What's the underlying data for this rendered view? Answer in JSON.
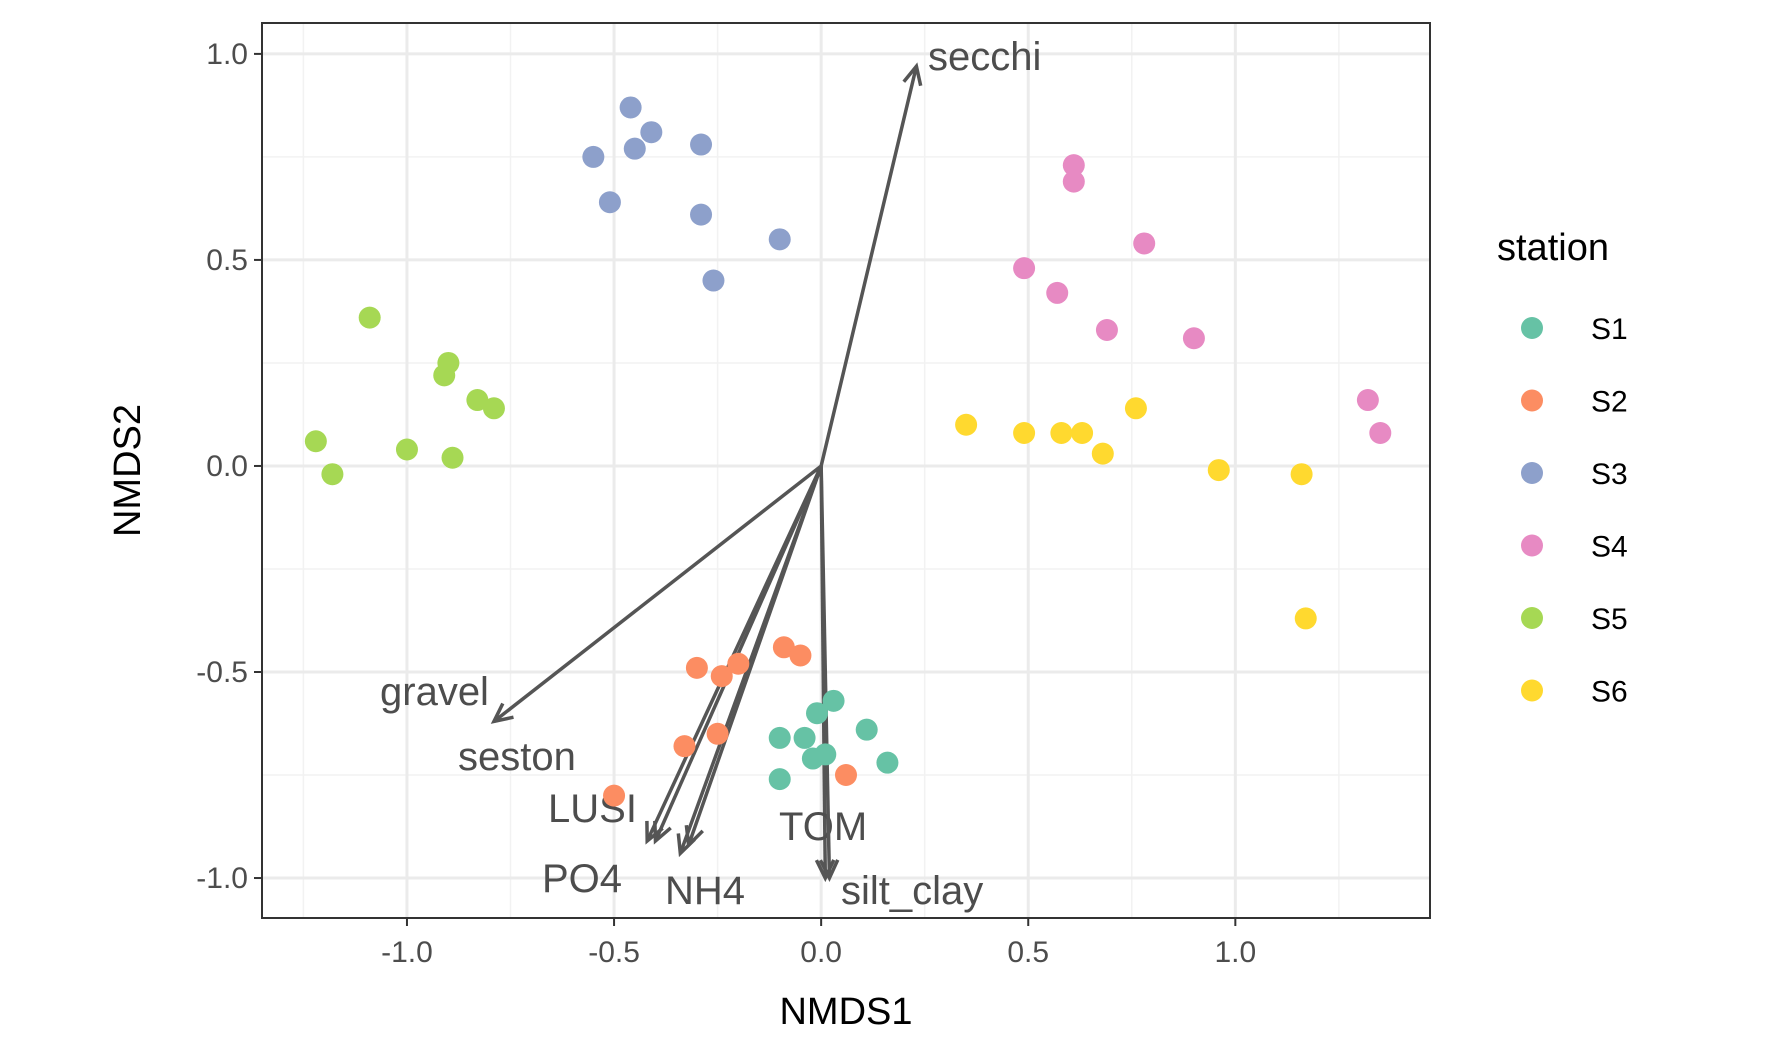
{
  "chart_data": {
    "type": "scatter",
    "xlabel": "NMDS1",
    "ylabel": "NMDS2",
    "xlim": [
      -1.35,
      1.47
    ],
    "ylim": [
      -1.097,
      1.075
    ],
    "xticks": [
      -1.0,
      -0.5,
      0.0,
      0.5,
      1.0
    ],
    "xtick_labels": [
      "-1.0",
      "-0.5",
      "0.0",
      "0.5",
      "1.0"
    ],
    "yticks": [
      -1.0,
      -0.5,
      0.0,
      0.5,
      1.0
    ],
    "ytick_labels": [
      "-1.0",
      "-0.5",
      "0.0",
      "0.5",
      "1.0"
    ],
    "grid": true,
    "legend": {
      "title": "station",
      "position": "right"
    },
    "series": [
      {
        "name": "S1",
        "color": "#66C2A5",
        "points": [
          [
            0.03,
            -0.57
          ],
          [
            -0.01,
            -0.6
          ],
          [
            0.11,
            -0.64
          ],
          [
            -0.04,
            -0.66
          ],
          [
            -0.1,
            -0.66
          ],
          [
            0.01,
            -0.7
          ],
          [
            -0.02,
            -0.71
          ],
          [
            0.16,
            -0.72
          ],
          [
            -0.1,
            -0.76
          ]
        ]
      },
      {
        "name": "S2",
        "color": "#FC8D62",
        "points": [
          [
            -0.09,
            -0.44
          ],
          [
            -0.05,
            -0.46
          ],
          [
            -0.3,
            -0.49
          ],
          [
            -0.2,
            -0.48
          ],
          [
            -0.24,
            -0.51
          ],
          [
            -0.25,
            -0.65
          ],
          [
            -0.33,
            -0.68
          ],
          [
            0.06,
            -0.75
          ],
          [
            -0.5,
            -0.8
          ]
        ]
      },
      {
        "name": "S3",
        "color": "#8DA0CB",
        "points": [
          [
            -0.46,
            0.87
          ],
          [
            -0.41,
            0.81
          ],
          [
            -0.45,
            0.77
          ],
          [
            -0.29,
            0.78
          ],
          [
            -0.55,
            0.75
          ],
          [
            -0.51,
            0.64
          ],
          [
            -0.29,
            0.61
          ],
          [
            -0.1,
            0.55
          ],
          [
            -0.26,
            0.45
          ]
        ]
      },
      {
        "name": "S4",
        "color": "#E78AC3",
        "points": [
          [
            0.61,
            0.73
          ],
          [
            0.61,
            0.69
          ],
          [
            0.78,
            0.54
          ],
          [
            0.49,
            0.48
          ],
          [
            0.57,
            0.42
          ],
          [
            0.69,
            0.33
          ],
          [
            0.9,
            0.31
          ],
          [
            1.32,
            0.16
          ],
          [
            1.35,
            0.08
          ]
        ]
      },
      {
        "name": "S5",
        "color": "#A6D854",
        "points": [
          [
            -1.09,
            0.36
          ],
          [
            -0.9,
            0.25
          ],
          [
            -0.91,
            0.22
          ],
          [
            -0.83,
            0.16
          ],
          [
            -0.79,
            0.14
          ],
          [
            -1.22,
            0.06
          ],
          [
            -1.0,
            0.04
          ],
          [
            -0.89,
            0.02
          ],
          [
            -1.18,
            -0.02
          ]
        ]
      },
      {
        "name": "S6",
        "color": "#FFD92F",
        "points": [
          [
            0.35,
            0.1
          ],
          [
            0.49,
            0.08
          ],
          [
            0.58,
            0.08
          ],
          [
            0.63,
            0.08
          ],
          [
            0.76,
            0.14
          ],
          [
            0.68,
            0.03
          ],
          [
            0.96,
            -0.01
          ],
          [
            1.16,
            -0.02
          ],
          [
            1.17,
            -0.37
          ]
        ]
      }
    ],
    "vectors": [
      {
        "name": "secchi",
        "x": 0.23,
        "y": 0.97
      },
      {
        "name": "gravel",
        "x": -0.79,
        "y": -0.62
      },
      {
        "name": "seston",
        "x": -0.42,
        "y": -0.91
      },
      {
        "name": "LUSI",
        "x": -0.4,
        "y": -0.91
      },
      {
        "name": "PO4",
        "x": -0.34,
        "y": -0.94
      },
      {
        "name": "NH4",
        "x": -0.32,
        "y": -0.92
      },
      {
        "name": "TOM",
        "x": 0.01,
        "y": -1.0
      },
      {
        "name": "silt_clay",
        "x": 0.02,
        "y": -1.0
      }
    ]
  }
}
